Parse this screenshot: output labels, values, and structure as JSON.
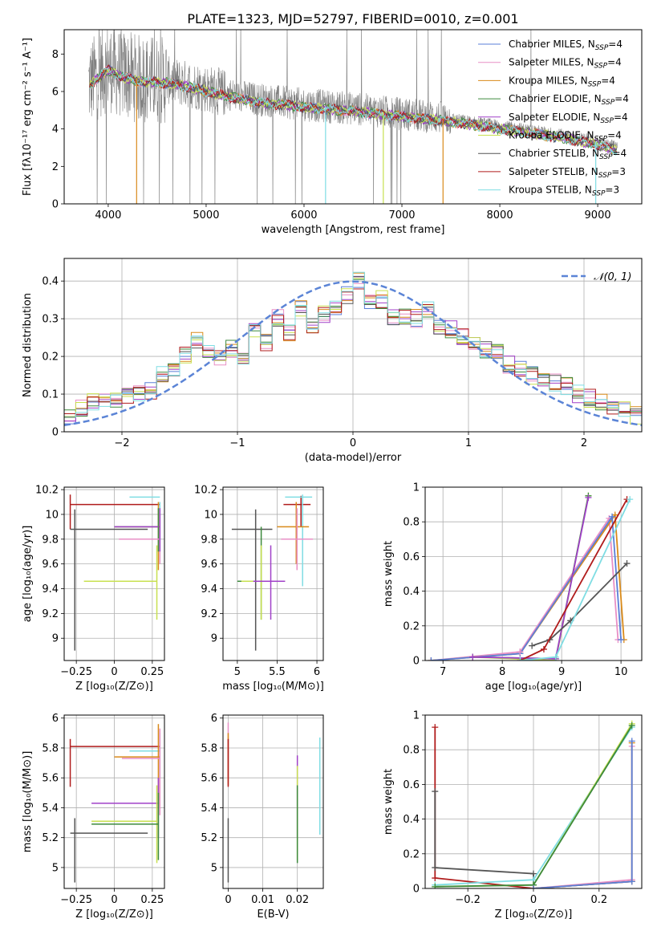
{
  "figure": {
    "title": "PLATE=1323, MJD=52797, FIBERID=0010, z=0.001"
  },
  "colors": {
    "chabrier_miles": "#5a7fd8",
    "salpeter_miles": "#e88fc6",
    "kroupa_miles": "#d98a1a",
    "chabrier_elodie": "#3d8a3d",
    "salpeter_elodie": "#a040c8",
    "kroupa_elodie": "#c8e050",
    "chabrier_stelib": "#555555",
    "salpeter_stelib": "#b01c1c",
    "kroupa_stelib": "#7fdde3",
    "data": "#808080",
    "normal": "#5b84d6"
  },
  "chart_data": [
    {
      "id": "spectrum",
      "type": "line",
      "title": "PLATE=1323, MJD=52797, FIBERID=0010, z=0.001",
      "xlabel": "wavelength [Angstrom, rest frame]",
      "ylabel": "Flux [fλ10⁻¹⁷ erg cm⁻² s⁻¹ A⁻¹]",
      "xlim": [
        3550,
        9450
      ],
      "ylim": [
        0,
        9.3
      ],
      "xticks": [
        4000,
        5000,
        6000,
        7000,
        8000,
        9000
      ],
      "yticks": [
        0,
        2,
        4,
        6,
        8
      ],
      "legend_position": "top-right",
      "legend": [
        "Chabrier MILES, N_SSP=4",
        "Salpeter MILES, N_SSP=4",
        "Kroupa MILES, N_SSP=4",
        "Chabrier ELODIE, N_SSP=4",
        "Salpeter ELODIE, N_SSP=4",
        "Kroupa ELODIE, N_SSP=4",
        "Chabrier STELIB, N_SSP=4",
        "Salpeter STELIB, N_SSP=3",
        "Kroupa STELIB, N_SSP=3"
      ],
      "data_range": [
        3800,
        9200
      ],
      "continuum_x": [
        3800,
        3900,
        4000,
        4100,
        4300,
        4600,
        4900,
        5200,
        5500,
        6000,
        6500,
        7000,
        7400,
        7800,
        8200,
        8600,
        9000,
        9200
      ],
      "continuum_y": [
        6.4,
        6.9,
        7.3,
        7.0,
        6.7,
        6.6,
        6.3,
        5.9,
        5.6,
        5.3,
        5.1,
        4.8,
        4.6,
        4.3,
        4.0,
        3.7,
        3.3,
        3.0
      ]
    },
    {
      "id": "residuals",
      "type": "line",
      "xlabel": "(data-model)/error",
      "ylabel": "Normed distribution",
      "xlim": [
        -2.5,
        2.5
      ],
      "ylim": [
        0,
        0.46
      ],
      "xticks": [
        -2,
        -1,
        0,
        1,
        2
      ],
      "yticks": [
        0.0,
        0.1,
        0.2,
        0.3,
        0.4
      ],
      "legend_position": "top-right",
      "gaussian_label": "𝒩(0, 1)",
      "hist_x": [
        -2.5,
        -2.4,
        -2.3,
        -2.2,
        -2.1,
        -2.0,
        -1.9,
        -1.8,
        -1.7,
        -1.6,
        -1.5,
        -1.4,
        -1.3,
        -1.2,
        -1.1,
        -1.0,
        -0.9,
        -0.8,
        -0.7,
        -0.6,
        -0.5,
        -0.4,
        -0.3,
        -0.2,
        -0.1,
        0.0,
        0.1,
        0.2,
        0.3,
        0.4,
        0.5,
        0.6,
        0.7,
        0.8,
        0.9,
        1.0,
        1.1,
        1.2,
        1.3,
        1.4,
        1.5,
        1.6,
        1.7,
        1.8,
        1.9,
        2.0,
        2.1,
        2.2,
        2.3,
        2.4
      ],
      "hist_base": [
        0.04,
        0.06,
        0.08,
        0.085,
        0.09,
        0.1,
        0.1,
        0.11,
        0.15,
        0.17,
        0.2,
        0.24,
        0.22,
        0.2,
        0.22,
        0.19,
        0.27,
        0.24,
        0.3,
        0.26,
        0.33,
        0.28,
        0.31,
        0.33,
        0.36,
        0.4,
        0.34,
        0.35,
        0.3,
        0.31,
        0.3,
        0.32,
        0.28,
        0.27,
        0.25,
        0.24,
        0.22,
        0.21,
        0.18,
        0.17,
        0.15,
        0.14,
        0.13,
        0.12,
        0.1,
        0.09,
        0.08,
        0.07,
        0.06,
        0.045
      ]
    },
    {
      "id": "age-vs-Z",
      "type": "scatter",
      "xlabel": "Z [log₁₀(Z/Z⊙)]",
      "ylabel": "age  [log₁₀(age/yr)]",
      "xlim": [
        -0.33,
        0.33
      ],
      "ylim": [
        8.82,
        10.22
      ],
      "xticks": [
        -0.25,
        0.0,
        0.25
      ],
      "yticks": [
        9.0,
        9.2,
        9.4,
        9.6,
        9.8,
        10.0,
        10.2
      ],
      "bars": [
        {
          "c": "salpeter_stelib",
          "h": [
            -0.29,
            0.3,
            10.08
          ],
          "v": [
            -0.29,
            9.88,
            10.16
          ]
        },
        {
          "c": "kroupa_stelib",
          "h": [
            0.1,
            0.3,
            10.14
          ],
          "v": [
            0.3,
            9.6,
            10.1
          ]
        },
        {
          "c": "chabrier_stelib",
          "h": [
            -0.29,
            0.22,
            9.88
          ],
          "v": [
            -0.26,
            8.9,
            10.04
          ]
        },
        {
          "c": "kroupa_miles",
          "h": [
            0.0,
            0.3,
            9.9
          ],
          "v": [
            0.29,
            9.55,
            10.1
          ]
        },
        {
          "c": "chabrier_elodie",
          "h": [
            0.0,
            0.29,
            9.9
          ],
          "v": [
            0.29,
            9.7,
            10.05
          ]
        },
        {
          "c": "salpeter_miles",
          "h": [
            0.03,
            0.3,
            9.8
          ],
          "v": [
            0.3,
            9.6,
            10.0
          ]
        },
        {
          "c": "kroupa_elodie",
          "h": [
            -0.2,
            0.28,
            9.46
          ],
          "v": [
            0.28,
            9.15,
            9.75
          ]
        },
        {
          "c": "salpeter_elodie",
          "h": [
            0.0,
            0.29,
            9.9
          ],
          "v": [
            0.3,
            9.7,
            10.05
          ]
        }
      ]
    },
    {
      "id": "age-vs-mass",
      "type": "scatter",
      "xlabel": "mass [log₁₀(M/M⊙)]",
      "ylabel": "",
      "xlim": [
        4.82,
        6.08
      ],
      "ylim": [
        8.82,
        10.22
      ],
      "xticks": [
        5.0,
        5.5,
        6.0
      ],
      "yticks": [
        9.0,
        9.2,
        9.4,
        9.6,
        9.8,
        10.0,
        10.2
      ],
      "bars": [
        {
          "c": "salpeter_stelib",
          "h": [
            5.58,
            5.92,
            10.08
          ],
          "v": [
            5.8,
            9.9,
            10.15
          ]
        },
        {
          "c": "kroupa_stelib",
          "h": [
            5.6,
            5.94,
            10.14
          ],
          "v": [
            5.82,
            9.42,
            10.16
          ]
        },
        {
          "c": "chabrier_stelib",
          "h": [
            4.93,
            5.44,
            9.88
          ],
          "v": [
            5.23,
            8.9,
            10.04
          ]
        },
        {
          "c": "kroupa_miles",
          "h": [
            5.5,
            5.9,
            9.9
          ],
          "v": [
            5.74,
            9.6,
            10.1
          ]
        },
        {
          "c": "salpeter_miles",
          "h": [
            5.55,
            5.95,
            9.8
          ],
          "v": [
            5.75,
            9.55,
            10.05
          ]
        },
        {
          "c": "chabrier_elodie",
          "h": [
            5.0,
            5.55,
            9.46
          ],
          "v": [
            5.3,
            9.15,
            9.9
          ]
        },
        {
          "c": "kroupa_elodie",
          "h": [
            5.05,
            5.6,
            9.46
          ],
          "v": [
            5.3,
            9.15,
            9.75
          ]
        },
        {
          "c": "salpeter_elodie",
          "h": [
            5.2,
            5.6,
            9.46
          ],
          "v": [
            5.42,
            9.15,
            9.75
          ]
        }
      ]
    },
    {
      "id": "weight-vs-age",
      "type": "line",
      "xlabel": "age  [log₁₀(age/yr)]",
      "ylabel": "mass weight",
      "xlim": [
        6.7,
        10.35
      ],
      "ylim": [
        0,
        1.0
      ],
      "xticks": [
        7,
        8,
        9,
        10
      ],
      "yticks": [
        0.0,
        0.2,
        0.4,
        0.6,
        0.8,
        1.0
      ],
      "series": [
        {
          "c": "salpeter_miles",
          "x": [
            6.8,
            8.3,
            9.8,
            9.95
          ],
          "y": [
            0.0,
            0.05,
            0.82,
            0.12
          ]
        },
        {
          "c": "kroupa_miles",
          "x": [
            6.8,
            8.3,
            9.9,
            10.05
          ],
          "y": [
            0.0,
            0.04,
            0.84,
            0.12
          ]
        },
        {
          "c": "chabrier_miles",
          "x": [
            6.8,
            8.3,
            9.85,
            10.0
          ],
          "y": [
            0.0,
            0.04,
            0.83,
            0.12
          ]
        },
        {
          "c": "kroupa_elodie",
          "x": [
            7.5,
            8.9,
            9.45
          ],
          "y": [
            0.02,
            0.0,
            0.95
          ]
        },
        {
          "c": "chabrier_elodie",
          "x": [
            7.5,
            8.9,
            9.45
          ],
          "y": [
            0.02,
            0.01,
            0.95
          ]
        },
        {
          "c": "salpeter_elodie",
          "x": [
            7.5,
            8.9,
            9.45
          ],
          "y": [
            0.02,
            0.01,
            0.94
          ]
        },
        {
          "c": "chabrier_stelib",
          "x": [
            8.5,
            8.8,
            9.15,
            10.1
          ],
          "y": [
            0.085,
            0.12,
            0.23,
            0.56
          ]
        },
        {
          "c": "salpeter_stelib",
          "x": [
            8.3,
            8.7,
            10.1
          ],
          "y": [
            0.0,
            0.065,
            0.93
          ]
        },
        {
          "c": "kroupa_stelib",
          "x": [
            8.3,
            8.9,
            10.15
          ],
          "y": [
            0.0,
            0.02,
            0.93
          ]
        },
        {
          "c": "salpeter_miles",
          "x": [
            8.3,
            8.3
          ],
          "y": [
            0.05,
            0.05
          ]
        }
      ]
    },
    {
      "id": "mass-vs-Z",
      "type": "scatter",
      "xlabel": "Z [log₁₀(Z/Z⊙)]",
      "ylabel": "mass [log₁₀(M/M⊙)]",
      "xlim": [
        -0.33,
        0.33
      ],
      "ylim": [
        4.86,
        6.02
      ],
      "xticks": [
        -0.25,
        0.0,
        0.25
      ],
      "yticks": [
        5.0,
        5.2,
        5.4,
        5.6,
        5.8,
        6.0
      ],
      "bars": [
        {
          "c": "salpeter_stelib",
          "h": [
            -0.29,
            0.3,
            5.81
          ],
          "v": [
            -0.29,
            5.54,
            5.86
          ]
        },
        {
          "c": "kroupa_stelib",
          "h": [
            0.1,
            0.3,
            5.78
          ],
          "v": [
            0.3,
            5.6,
            5.9
          ]
        },
        {
          "c": "kroupa_miles",
          "h": [
            0.0,
            0.3,
            5.74
          ],
          "v": [
            0.29,
            5.4,
            5.96
          ]
        },
        {
          "c": "salpeter_miles",
          "h": [
            0.05,
            0.3,
            5.73
          ],
          "v": [
            0.3,
            5.35,
            5.93
          ]
        },
        {
          "c": "salpeter_elodie",
          "h": [
            -0.15,
            0.29,
            5.43
          ],
          "v": [
            0.29,
            5.2,
            5.6
          ]
        },
        {
          "c": "kroupa_elodie",
          "h": [
            -0.15,
            0.28,
            5.31
          ],
          "v": [
            0.28,
            5.03,
            5.55
          ]
        },
        {
          "c": "chabrier_elodie",
          "h": [
            -0.15,
            0.29,
            5.29
          ],
          "v": [
            0.29,
            5.05,
            5.5
          ]
        },
        {
          "c": "chabrier_stelib",
          "h": [
            -0.29,
            0.22,
            5.23
          ],
          "v": [
            -0.26,
            4.9,
            5.33
          ]
        }
      ]
    },
    {
      "id": "mass-vs-EBV",
      "type": "scatter",
      "xlabel": "E(B-V)",
      "ylabel": "",
      "xlim": [
        -0.0015,
        0.0275
      ],
      "ylim": [
        4.86,
        6.02
      ],
      "xticks": [
        0.0,
        0.01,
        0.02
      ],
      "yticks": [
        5.0,
        5.2,
        5.4,
        5.6,
        5.8,
        6.0
      ],
      "bars": [
        {
          "c": "salpeter_miles",
          "v": [
            0.0,
            5.6,
            5.97
          ]
        },
        {
          "c": "kroupa_miles",
          "v": [
            0.0,
            5.55,
            5.9
          ]
        },
        {
          "c": "salpeter_stelib",
          "v": [
            0.0,
            5.54,
            5.86
          ]
        },
        {
          "c": "chabrier_stelib",
          "v": [
            0.0,
            4.9,
            5.33
          ]
        },
        {
          "c": "salpeter_elodie",
          "v": [
            0.02,
            5.2,
            5.75
          ]
        },
        {
          "c": "kroupa_elodie",
          "v": [
            0.02,
            5.05,
            5.68
          ]
        },
        {
          "c": "chabrier_elodie",
          "v": [
            0.02,
            5.03,
            5.55
          ]
        },
        {
          "c": "kroupa_stelib",
          "v": [
            0.0265,
            5.22,
            5.87
          ]
        }
      ]
    },
    {
      "id": "weight-vs-Z",
      "type": "line",
      "xlabel": "Z [log₁₀(Z/Z⊙)]",
      "ylabel": "mass weight",
      "xlim": [
        -0.33,
        0.33
      ],
      "ylim": [
        0,
        1.0
      ],
      "xticks": [
        -0.2,
        0.0,
        0.2
      ],
      "yticks": [
        0.0,
        0.2,
        0.4,
        0.6,
        0.8,
        1.0
      ],
      "series": [
        {
          "c": "salpeter_stelib",
          "x": [
            -0.3,
            -0.3,
            0.0,
            0.3
          ],
          "y": [
            0.93,
            0.06,
            0.0,
            0.04
          ]
        },
        {
          "c": "chabrier_stelib",
          "x": [
            -0.3,
            -0.3,
            0.0,
            0.0
          ],
          "y": [
            0.56,
            0.12,
            0.085,
            0.0
          ]
        },
        {
          "c": "kroupa_stelib",
          "x": [
            -0.3,
            0.0,
            0.3
          ],
          "y": [
            0.02,
            0.05,
            0.93
          ]
        },
        {
          "c": "kroupa_elodie",
          "x": [
            -0.3,
            0.0,
            0.3
          ],
          "y": [
            0.01,
            0.02,
            0.95
          ]
        },
        {
          "c": "chabrier_elodie",
          "x": [
            -0.3,
            0.0,
            0.3
          ],
          "y": [
            0.01,
            0.02,
            0.94
          ]
        },
        {
          "c": "salpeter_miles",
          "x": [
            0.0,
            0.3,
            0.3
          ],
          "y": [
            0.0,
            0.05,
            0.82
          ]
        },
        {
          "c": "kroupa_miles",
          "x": [
            0.0,
            0.3,
            0.3
          ],
          "y": [
            0.0,
            0.04,
            0.84
          ]
        },
        {
          "c": "chabrier_miles",
          "x": [
            0.0,
            0.3,
            0.3
          ],
          "y": [
            0.0,
            0.04,
            0.85
          ]
        }
      ]
    }
  ]
}
